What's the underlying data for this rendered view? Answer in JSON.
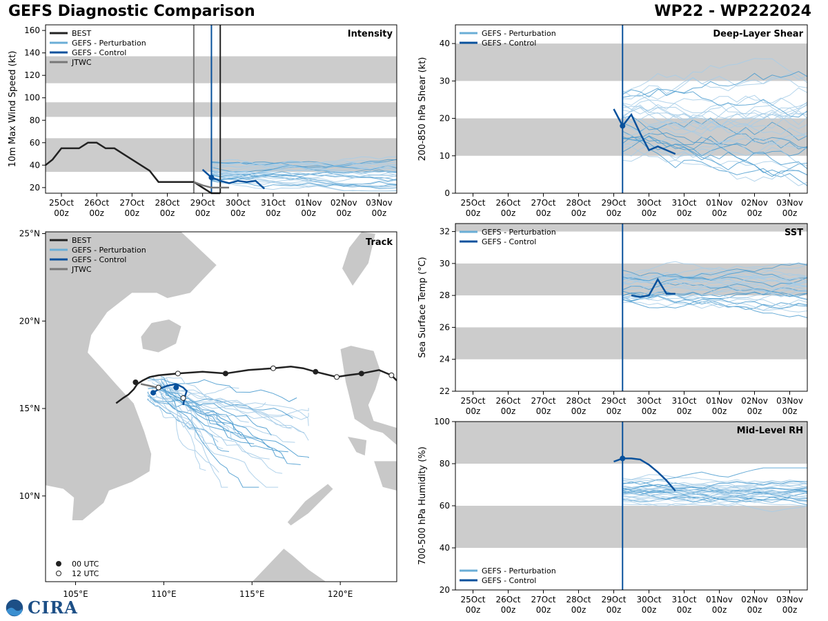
{
  "header": {
    "title": "GEFS Diagnostic Comparison",
    "storm": "WP22 - WP222024"
  },
  "colors": {
    "best": "#222222",
    "perturbation": "#6aaed6",
    "control": "#08519c",
    "jtwc": "#777777",
    "band": "#cccccc",
    "land": "#c8c8c8"
  },
  "time_ticks": [
    "25Oct",
    "26Oct",
    "27Oct",
    "28Oct",
    "29Oct",
    "30Oct",
    "31Oct",
    "01Nov",
    "02Nov",
    "03Nov"
  ],
  "time_hour": "00z",
  "logo": {
    "text": "CIRA"
  },
  "chart_data": [
    {
      "id": "intensity",
      "type": "line",
      "title": "Intensity",
      "ylabel": "10m Max Wind Speed (kt)",
      "xlabel": "",
      "xlim": [
        -0.45,
        9.5
      ],
      "ylim": [
        15,
        165
      ],
      "yticks": [
        20,
        40,
        60,
        80,
        100,
        120,
        140,
        160
      ],
      "bands": [
        [
          34,
          64
        ],
        [
          83,
          96
        ],
        [
          113,
          137
        ]
      ],
      "vlines": [
        {
          "x": 3.75,
          "series": "JTWC"
        },
        {
          "x": 4.5,
          "series": "BEST"
        },
        {
          "x": 4.25,
          "series": "GEFS - Control"
        }
      ],
      "legend": [
        "BEST",
        "GEFS - Perturbation",
        "GEFS - Control",
        "JTWC"
      ],
      "series": [
        {
          "name": "BEST",
          "x": [
            -0.45,
            -0.25,
            0,
            0.25,
            0.5,
            0.75,
            1,
            1.25,
            1.5,
            1.75,
            2,
            2.25,
            2.5,
            2.75,
            3,
            3.25,
            3.5,
            3.75,
            4,
            4.25,
            4.5
          ],
          "values": [
            40,
            45,
            55,
            55,
            55,
            60,
            60,
            55,
            55,
            50,
            45,
            40,
            35,
            25,
            25,
            25,
            25,
            25,
            20,
            15,
            15
          ]
        },
        {
          "name": "JTWC",
          "x": [
            3.75,
            4,
            4.25,
            4.5,
            4.75
          ],
          "values": [
            25,
            22,
            20,
            20,
            20
          ]
        },
        {
          "name": "GEFS - Control",
          "x": [
            4,
            4.25,
            4.5,
            4.75,
            5,
            5.25,
            5.5,
            5.75
          ],
          "values": [
            36,
            29,
            26,
            24,
            26,
            25,
            26,
            19
          ]
        }
      ],
      "members_range": {
        "x_start": 4.25,
        "x_end": 9.5,
        "y_min": 17,
        "y_max": 52
      }
    },
    {
      "id": "shear",
      "type": "line",
      "title": "Deep-Layer Shear",
      "ylabel": "200-850 hPa Shear (kt)",
      "xlabel": "",
      "xlim": [
        -0.5,
        9.5
      ],
      "ylim": [
        0,
        45
      ],
      "yticks": [
        0,
        10,
        20,
        30,
        40
      ],
      "bands": [
        [
          10,
          20
        ],
        [
          30,
          40
        ]
      ],
      "vlines": [
        {
          "x": 4.25,
          "series": "GEFS - Control"
        }
      ],
      "legend": [
        "GEFS - Perturbation",
        "GEFS - Control"
      ],
      "series": [
        {
          "name": "GEFS - Control",
          "x": [
            4,
            4.25,
            4.5,
            4.75,
            5,
            5.25,
            5.5,
            5.75
          ],
          "values": [
            22.5,
            18,
            21,
            16,
            11.5,
            12.5,
            11.5,
            10.5
          ]
        }
      ],
      "members_range": {
        "x_start": 4.25,
        "x_end": 9.5,
        "y_min": 2,
        "y_max": 36
      }
    },
    {
      "id": "sst",
      "type": "line",
      "title": "SST",
      "ylabel": "Sea Surface Temp (°C)",
      "xlabel": "",
      "xlim": [
        -0.5,
        9.5
      ],
      "ylim": [
        22,
        32.5
      ],
      "yticks": [
        22,
        24,
        26,
        28,
        30,
        32
      ],
      "bands": [
        [
          24,
          26
        ],
        [
          28,
          30
        ],
        [
          32,
          32.5
        ]
      ],
      "vlines": [
        {
          "x": 4.25,
          "series": "GEFS - Control"
        }
      ],
      "legend": [
        "GEFS - Perturbation",
        "GEFS - Control"
      ],
      "series": [
        {
          "name": "GEFS - Control",
          "x": [
            4.5,
            4.75,
            5,
            5.25,
            5.5,
            5.75
          ],
          "values": [
            28,
            27.9,
            28,
            29,
            28.1,
            28.1
          ]
        }
      ],
      "members_range": {
        "x_start": 4.25,
        "x_end": 9.5,
        "y_min": 26.6,
        "y_max": 30.5
      }
    },
    {
      "id": "rh",
      "type": "line",
      "title": "Mid-Level RH",
      "ylabel": "700-500 hPa Humidity (%)",
      "xlabel": "",
      "xlim": [
        -0.5,
        9.5
      ],
      "ylim": [
        20,
        100
      ],
      "yticks": [
        20,
        40,
        60,
        80,
        100
      ],
      "bands": [
        [
          40,
          60
        ],
        [
          80,
          100
        ]
      ],
      "vlines": [
        {
          "x": 4.25,
          "series": "GEFS - Control"
        }
      ],
      "legend": [
        "GEFS - Perturbation",
        "GEFS - Control"
      ],
      "series": [
        {
          "name": "GEFS - Control",
          "x": [
            4,
            4.25,
            4.5,
            4.75,
            5,
            5.25,
            5.5,
            5.75
          ],
          "values": [
            81,
            82.5,
            82.5,
            82,
            79.5,
            76,
            72,
            67
          ]
        }
      ],
      "members_range": {
        "x_start": 4.25,
        "x_end": 9.5,
        "y_min": 56,
        "y_max": 78
      }
    },
    {
      "id": "track",
      "type": "scatter",
      "title": "Track",
      "xlabel": "",
      "ylabel": "",
      "xlim": [
        103.3,
        123.2
      ],
      "ylim": [
        5.1,
        25.1
      ],
      "xticks": [
        105,
        110,
        115,
        120
      ],
      "xtick_labels": [
        "105°E",
        "110°E",
        "115°E",
        "120°E"
      ],
      "yticks": [
        10,
        15,
        20,
        25
      ],
      "ytick_labels": [
        "10°N",
        "15°N",
        "20°N",
        "25°N"
      ],
      "legend": [
        "BEST",
        "GEFS - Perturbation",
        "GEFS - Control",
        "JTWC"
      ],
      "marker_legend": [
        "00 UTC",
        "12 UTC"
      ],
      "best_track": {
        "lon": [
          123.2,
          122.9,
          122.2,
          121.2,
          120.4,
          119.8,
          118.6,
          117.9,
          117.2,
          116.2,
          114.8,
          113.5,
          112.2,
          110.8,
          109.7,
          109.2,
          108.8,
          108.5,
          108.3,
          108.0,
          107.7,
          107.3
        ],
        "lat": [
          16.6,
          16.9,
          17.2,
          17.0,
          16.9,
          16.8,
          17.1,
          17.3,
          17.4,
          17.3,
          17.2,
          17.0,
          17.1,
          17.0,
          16.9,
          16.8,
          16.6,
          16.4,
          16.1,
          15.8,
          15.6,
          15.3
        ],
        "markers": [
          {
            "lon": 122.9,
            "lat": 16.9,
            "utc": "12"
          },
          {
            "lon": 121.2,
            "lat": 17.0,
            "utc": "00"
          },
          {
            "lon": 119.8,
            "lat": 16.8,
            "utc": "12"
          },
          {
            "lon": 118.6,
            "lat": 17.1,
            "utc": "00"
          },
          {
            "lon": 116.2,
            "lat": 17.3,
            "utc": "12"
          },
          {
            "lon": 113.5,
            "lat": 17.0,
            "utc": "00"
          },
          {
            "lon": 110.8,
            "lat": 17.0,
            "utc": "12"
          },
          {
            "lon": 108.4,
            "lat": 16.5,
            "utc": "00"
          }
        ]
      },
      "jtwc_track": {
        "lon": [
          108.7,
          109.2,
          109.6
        ],
        "lat": [
          16.4,
          16.3,
          16.2
        ]
      },
      "control_track": {
        "lon": [
          109.4,
          109.7,
          110.2,
          110.7,
          111.1,
          111.3,
          111.2,
          111.1
        ],
        "lat": [
          15.9,
          16.1,
          16.3,
          16.4,
          16.2,
          16.0,
          15.7,
          15.2
        ],
        "markers": [
          {
            "lon": 109.4,
            "lat": 15.9,
            "utc": "00"
          },
          {
            "lon": 109.7,
            "lat": 16.2,
            "utc": "12"
          },
          {
            "lon": 110.7,
            "lat": 16.2,
            "utc": "00"
          },
          {
            "lon": 111.1,
            "lat": 15.6,
            "utc": "12"
          }
        ]
      },
      "members_region": {
        "lon_min": 109.0,
        "lon_max": 118.2,
        "lat_min": 10.5,
        "lat_max": 18.8
      }
    }
  ]
}
